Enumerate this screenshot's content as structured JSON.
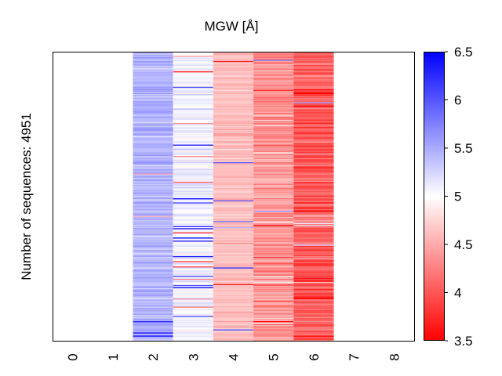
{
  "chart_data": {
    "type": "heatmap",
    "title": "MGW [Å]",
    "xlabel": "",
    "ylabel": "Number of sequences: 4951",
    "x_ticks": [
      "0",
      "1",
      "2",
      "3",
      "4",
      "5",
      "6",
      "7",
      "8"
    ],
    "x_range": [
      -0.5,
      8.5
    ],
    "n_rows_drawn": 280,
    "seed": 4951,
    "columns": [
      {
        "position": 2,
        "mean": 5.45,
        "spread": 0.1,
        "outlier_rate": 0.03
      },
      {
        "position": 3,
        "mean": 5.07,
        "spread": 0.1,
        "outlier_rate": 0.07
      },
      {
        "position": 4,
        "mean": 4.62,
        "spread": 0.08,
        "outlier_rate": 0.02
      },
      {
        "position": 5,
        "mean": 4.4,
        "spread": 0.18,
        "outlier_rate": 0.04
      },
      {
        "position": 6,
        "mean": 4.05,
        "spread": 0.18,
        "outlier_rate": 0.03
      }
    ],
    "colorbar": {
      "min": 3.5,
      "max": 6.5,
      "ticks": [
        "3.5",
        "4",
        "4.5",
        "5",
        "5.5",
        "6",
        "6.5"
      ],
      "colors": [
        "#ff0000",
        "#ffffff",
        "#0000ff"
      ]
    }
  }
}
